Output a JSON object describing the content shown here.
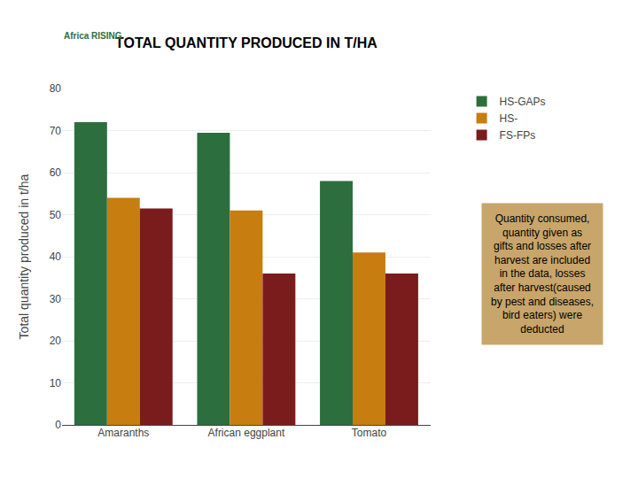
{
  "chart_data": {
    "type": "bar",
    "title": "TOTAL QUANTITY PRODUCED IN T/HA",
    "ylabel": "Total quantity produced in t/ha",
    "categories": [
      "Amaranths",
      "African eggplant",
      "Tomato"
    ],
    "series": [
      {
        "name": "HS-GAPs",
        "color": "#2d6e3e",
        "values": [
          72,
          69.5,
          58
        ]
      },
      {
        "name": "HS-",
        "color": "#c87d10",
        "values": [
          54,
          51,
          41
        ]
      },
      {
        "name": "FS-FPs",
        "color": "#7b1c1c",
        "values": [
          51.5,
          36,
          36
        ]
      }
    ],
    "ylim": [
      0,
      80
    ],
    "yticks": [
      0,
      10,
      20,
      30,
      40,
      50,
      60,
      70,
      80
    ],
    "grid": true,
    "legend": "upper right",
    "annotations": [
      "Africa RISING",
      "Quantity consumed,\nquantity given as\ngifts and losses after\nharvest are included\nin the data, losses\nafter harvest(caused\nby pest and diseases,\nbird eaters) were\ndeducted"
    ]
  }
}
